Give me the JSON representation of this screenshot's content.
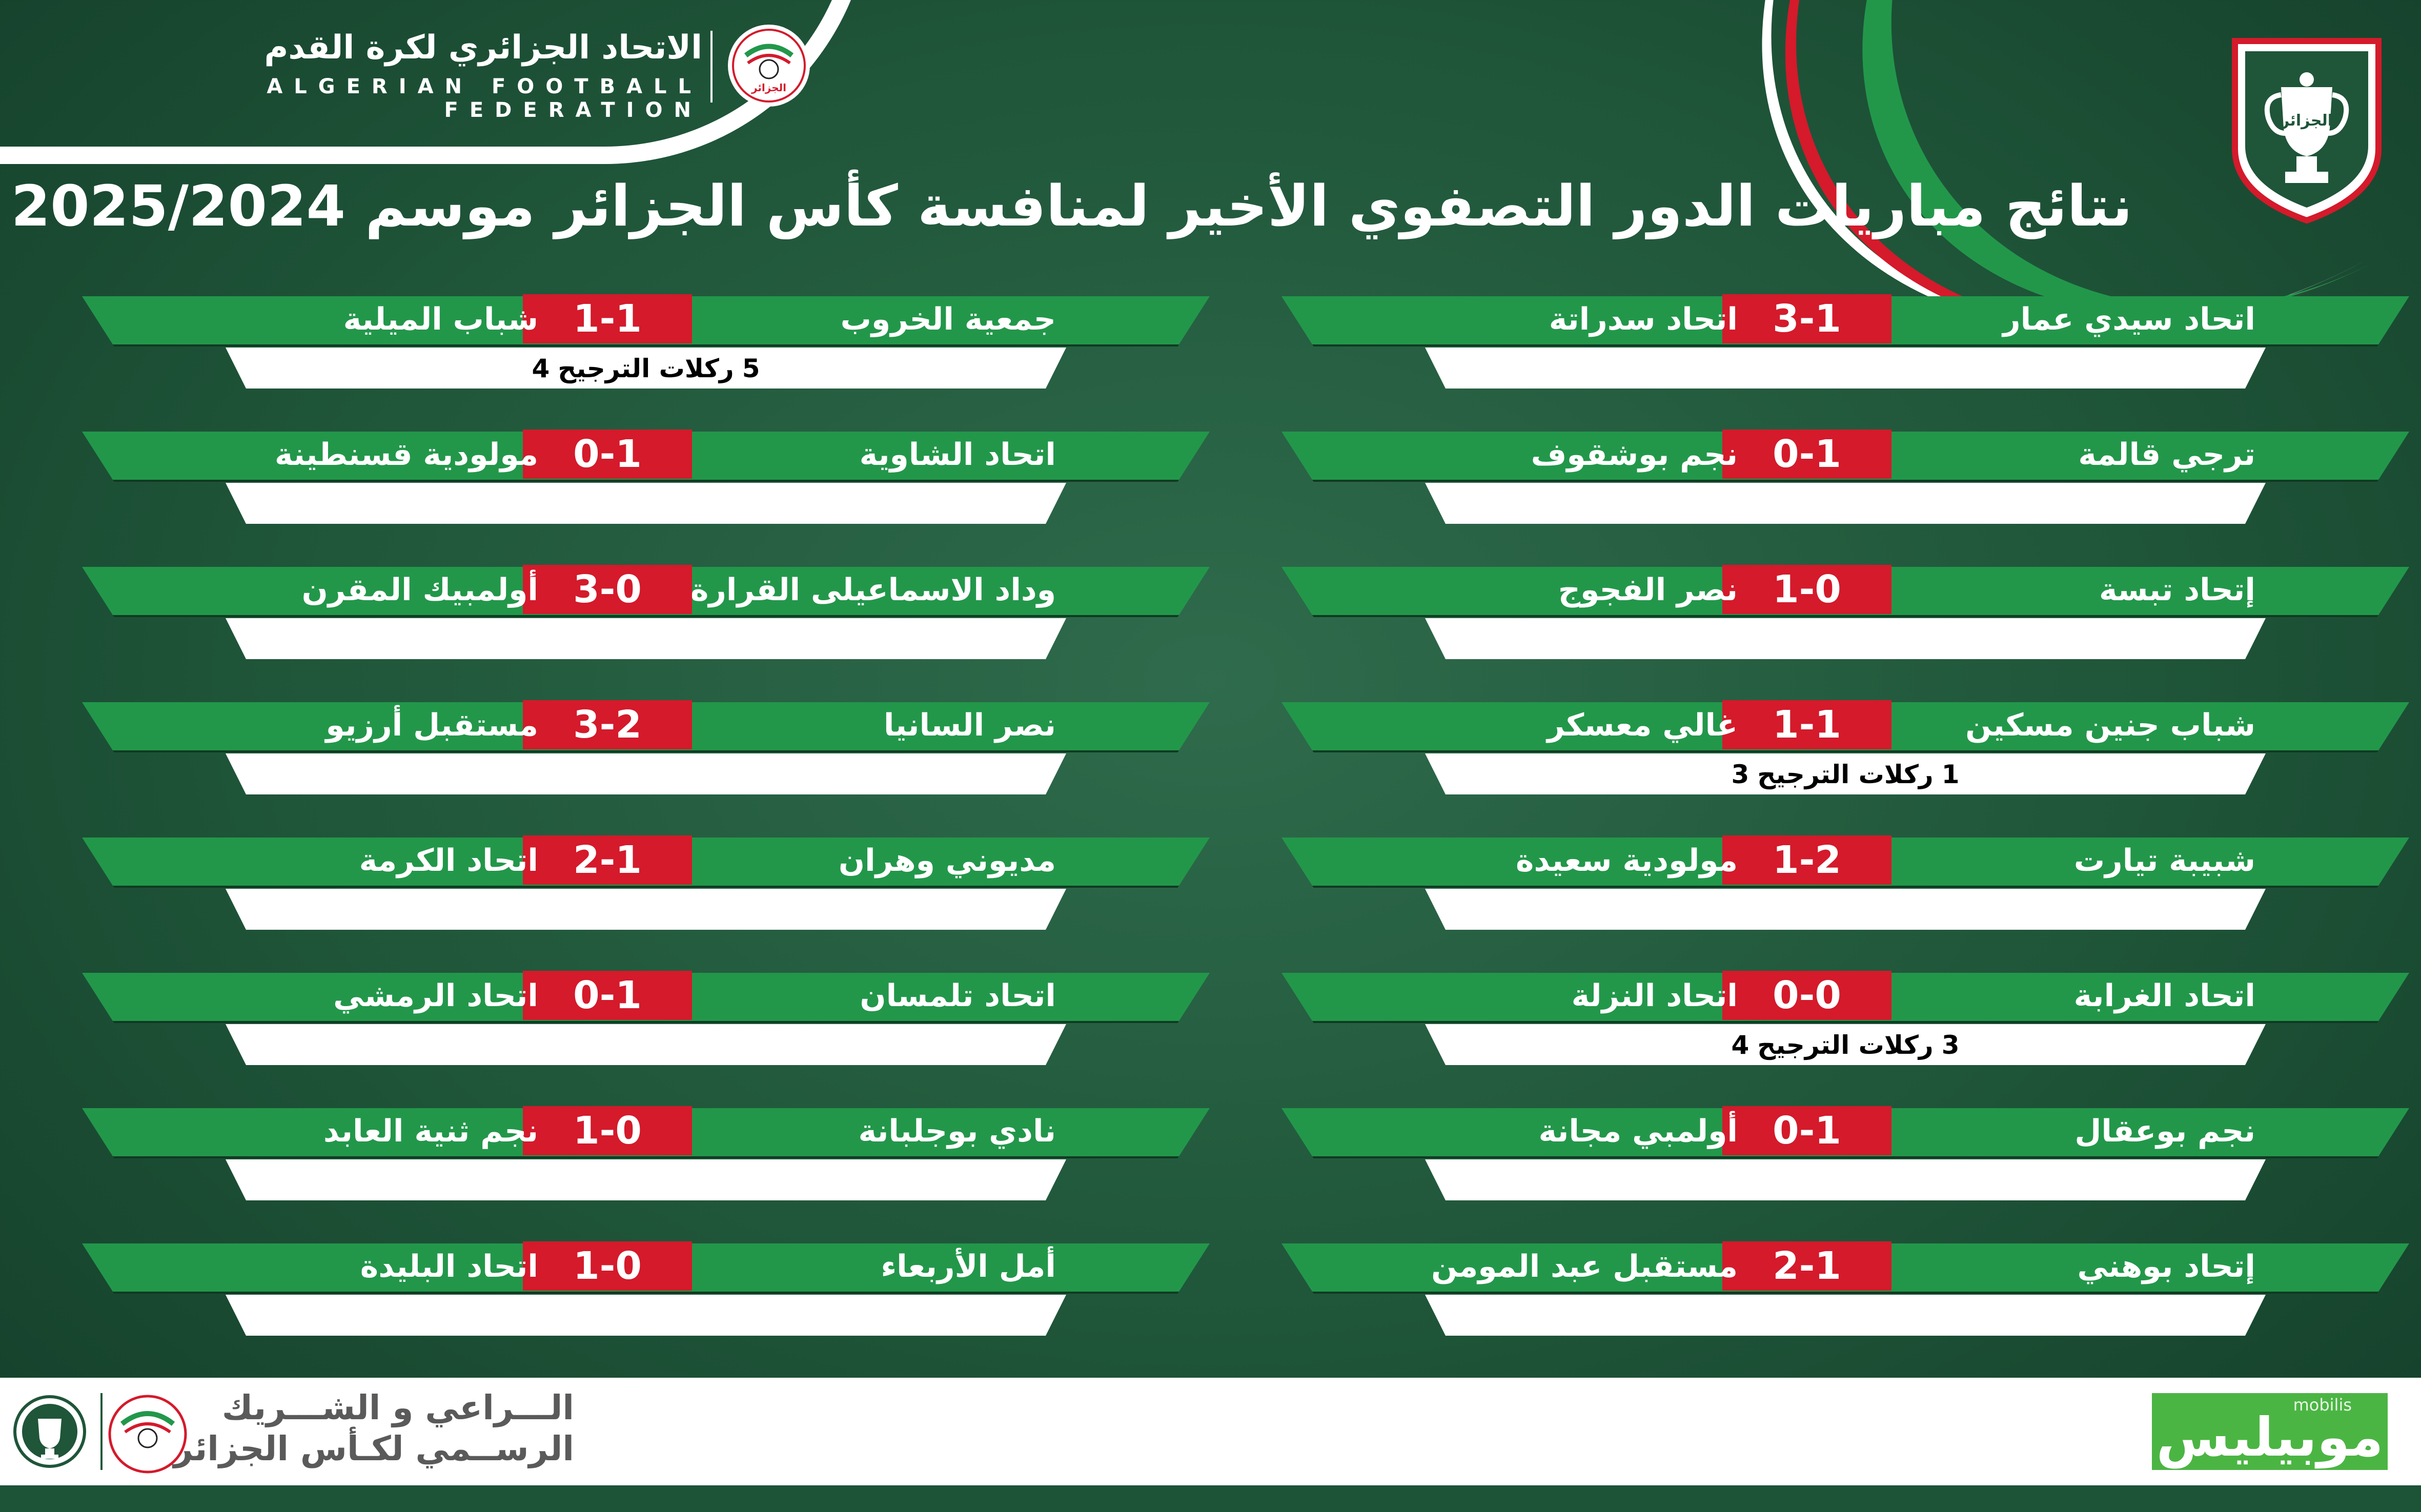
{
  "federation": {
    "name_ar": "الاتحاد الجزائري لكرة القدم",
    "name_en": "ALGERIAN FOOTBALL FEDERATION",
    "logo_text": "الجزائر"
  },
  "cup_badge_text": "الجزائر",
  "title": "نتائج مباريات الدور التصفوي الأخير لمنافسة كأس الجزائر موسم 2025/2024",
  "pens_label": "ركلات الترجيح",
  "colors": {
    "background": "#1f5539",
    "bar_green": "#22974a",
    "score_red": "#d41a2b",
    "white": "#ffffff"
  },
  "matches_right": [
    {
      "home": "اتحاد سيدي عمار",
      "score": "3-1",
      "away": "اتحاد سدراتة",
      "pens": null
    },
    {
      "home": "ترجي قالمة",
      "score": "0-1",
      "away": "نجم بوشقوف",
      "pens": null
    },
    {
      "home": "إتحاد تبسة",
      "score": "1-0",
      "away": "نصر الفجوج",
      "pens": null
    },
    {
      "home": "شباب جنين مسكين",
      "score": "1-1",
      "away": "غالي معسكر",
      "pens": {
        "left": "1",
        "right": "3"
      }
    },
    {
      "home": "شبيبة تيارت",
      "score": "1-2",
      "away": "مولودية سعيدة",
      "pens": null
    },
    {
      "home": "اتحاد الغرابة",
      "score": "0-0",
      "away": "اتحاد النزلة",
      "pens": {
        "left": "3",
        "right": "4"
      }
    },
    {
      "home": "نجم بوعقال",
      "score": "0-1",
      "away": "أولمبي مجانة",
      "pens": null
    },
    {
      "home": "إتحاد بوهني",
      "score": "2-1",
      "away": "مستقبل عبد المومن",
      "pens": null
    }
  ],
  "matches_left": [
    {
      "home": "جمعية الخروب",
      "score": "1-1",
      "away": "شباب الميلية",
      "pens": {
        "left": "5",
        "right": "4"
      }
    },
    {
      "home": "اتحاد الشاوية",
      "score": "0-1",
      "away": "مولودية قسنطينة",
      "pens": null
    },
    {
      "home": "وداد الاسماعيلى القرارة",
      "score": "3-0",
      "away": "أولمبيك المقرن",
      "pens": null
    },
    {
      "home": "نصر السانيا",
      "score": "3-2",
      "away": "مستقبل أرزيو",
      "pens": null
    },
    {
      "home": "مديوني وهران",
      "score": "2-1",
      "away": "اتحاد الكرمة",
      "pens": null
    },
    {
      "home": "اتحاد تلمسان",
      "score": "0-1",
      "away": "اتحاد الرمشي",
      "pens": null
    },
    {
      "home": "نادي بوجلبانة",
      "score": "1-0",
      "away": "نجم ثنية العابد",
      "pens": null
    },
    {
      "home": "أمل الأربعاء",
      "score": "1-0",
      "away": "اتحاد البليدة",
      "pens": null
    }
  ],
  "footer": {
    "sponsor_line1": "الـــراعي و الشـــريك",
    "sponsor_line2": "الرســمي لكـأس الجزائر",
    "mobilis_small": "mobilis",
    "mobilis_big": "موبيليس"
  }
}
